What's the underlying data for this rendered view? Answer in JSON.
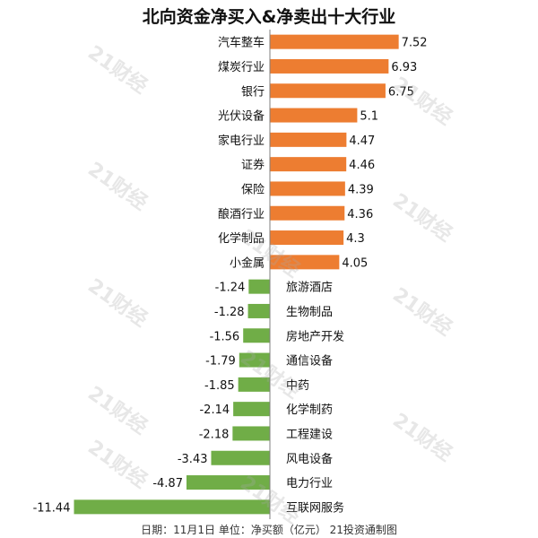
{
  "title": "北向资金净买入&净卖出十大行业",
  "footnote": "日期：11月1日 单位：净买额（亿元） 21投资通制图",
  "watermark_text": "21财经",
  "colors": {
    "positive": "#ED7D31",
    "negative": "#70AD47",
    "axis": "#7f7f7f",
    "text": "#111111"
  },
  "chart_data": {
    "type": "bar",
    "orientation": "horizontal",
    "title": "北向资金净买入&净卖出十大行业",
    "categories": [
      "汽车整车",
      "煤炭行业",
      "银行",
      "光伏设备",
      "家电行业",
      "证券",
      "保险",
      "酿酒行业",
      "化学制品",
      "小金属",
      "旅游酒店",
      "生物制品",
      "房地产开发",
      "通信设备",
      "中药",
      "化学制药",
      "工程建设",
      "风电设备",
      "电力行业",
      "互联网服务"
    ],
    "values": [
      7.52,
      6.93,
      6.75,
      5.1,
      4.47,
      4.46,
      4.39,
      4.36,
      4.3,
      4.05,
      -1.24,
      -1.28,
      -1.56,
      -1.79,
      -1.85,
      -2.14,
      -2.18,
      -3.43,
      -4.87,
      -11.44
    ],
    "value_labels": [
      "7.52",
      "6.93",
      "6.75",
      "5.1",
      "4.47",
      "4.46",
      "4.39",
      "4.36",
      "4.3",
      "4.05",
      "-1.24",
      "-1.28",
      "-1.56",
      "-1.79",
      "-1.85",
      "-2.14",
      "-2.18",
      "-3.43",
      "-4.87",
      "-11.44"
    ],
    "xlabel": "",
    "ylabel": "",
    "grid": false,
    "legend": "none"
  }
}
